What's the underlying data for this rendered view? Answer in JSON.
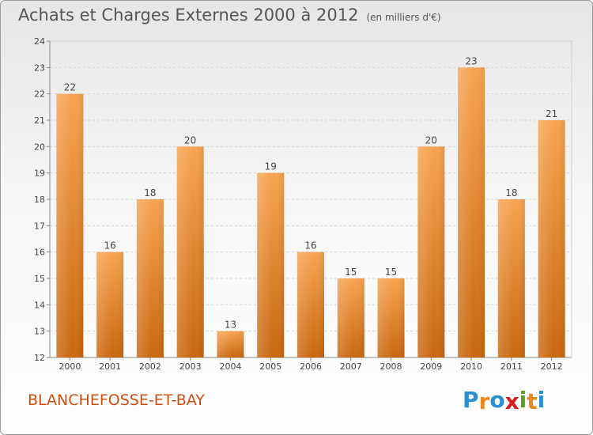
{
  "header": {
    "title": "Achats et Charges Externes 2000 à 2012",
    "unit": "(en milliers d'€)"
  },
  "footer": {
    "commune": "BLANCHEFOSSE-ET-BAY",
    "logo": {
      "text": "Proxiti",
      "letters": [
        "P",
        "r",
        "o",
        "x",
        "i",
        "t",
        "i"
      ],
      "colors": [
        "#2a8fd4",
        "#e8891e",
        "#2a8fd4",
        "#d0201e",
        "#5aa01e",
        "#e8891e",
        "#2a8fd4"
      ]
    }
  },
  "chart_data": {
    "type": "bar",
    "categories": [
      "2000",
      "2001",
      "2002",
      "2003",
      "2004",
      "2005",
      "2006",
      "2007",
      "2008",
      "2009",
      "2010",
      "2011",
      "2012"
    ],
    "values": [
      22,
      16,
      18,
      20,
      13,
      19,
      16,
      15,
      15,
      20,
      23,
      18,
      21
    ],
    "title": "Achats et Charges Externes 2000 à 2012",
    "xlabel": "",
    "ylabel": "",
    "ylim": [
      12,
      24
    ],
    "yticks": [
      12,
      13,
      14,
      15,
      16,
      17,
      18,
      19,
      20,
      21,
      22,
      23,
      24
    ],
    "grid": true,
    "bar_color": "#f0923a",
    "bar_color_dark": "#cf6a12"
  }
}
